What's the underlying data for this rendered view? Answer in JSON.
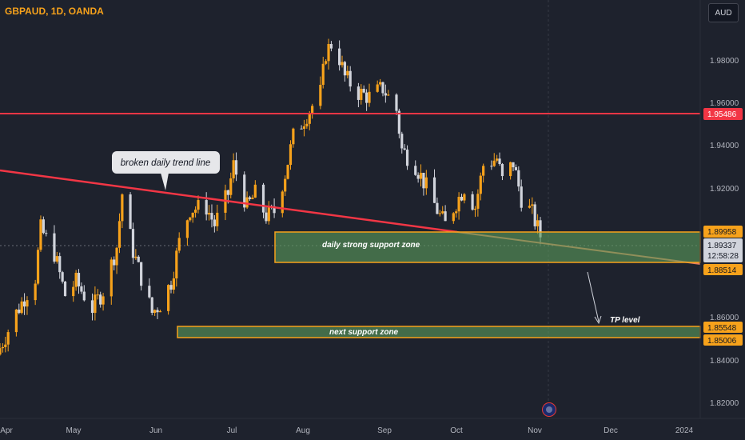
{
  "header": {
    "symbol_title": "GBPAUD, 1D, OANDA"
  },
  "currency_button": {
    "label": "AUD"
  },
  "colors": {
    "background": "#1e222d",
    "up_candle": "#f7a21b",
    "down_candle": "#d1d4dc",
    "resistance_line": "#f23645",
    "trend_line": "#f23645",
    "support_zone_fill": "#5b9a5b",
    "support_zone_border": "#f7a21b",
    "price_label_red": "#f23645",
    "price_label_orange": "#f7a21b",
    "price_label_current": "#d1d4dc",
    "axis_text": "#b2b5be"
  },
  "annotations": {
    "callout": "broken daily trend line",
    "zone1_label": "daily strong support zone",
    "zone2_label": "next support zone",
    "tp_label": "TP level"
  },
  "chart_data": {
    "type": "candlestick",
    "title": "GBPAUD, 1D, OANDA",
    "ylim": [
      1.81,
      2.0
    ],
    "yticks": [
      "1.98000",
      "1.96000",
      "1.94000",
      "1.92000",
      "1.86000",
      "1.84000",
      "1.82000"
    ],
    "xticks": [
      "Apr",
      "May",
      "Jun",
      "Jul",
      "Aug",
      "Sep",
      "Oct",
      "Nov",
      "Dec",
      "2024"
    ],
    "price_labels": {
      "resistance": "1.95486",
      "zone1_top": "1.89958",
      "current_price": "1.89337",
      "countdown": "12:58:28",
      "zone1_bottom": "1.88514",
      "zone2_top": "1.85548",
      "zone2_bottom": "1.85006"
    },
    "levels": {
      "resistance": 1.95486,
      "zone1_top": 1.89958,
      "zone1_bottom": 1.88514,
      "zone2_top": 1.85548,
      "zone2_bottom": 1.85006,
      "current": 1.89337
    },
    "series_close_path": [
      [
        "2023-04-18",
        1.842
      ],
      [
        "2023-04-24",
        1.858
      ],
      [
        "2023-05-01",
        1.874
      ],
      [
        "2023-05-03",
        1.896
      ],
      [
        "2023-05-08",
        1.885
      ],
      [
        "2023-05-12",
        1.866
      ],
      [
        "2023-05-16",
        1.872
      ],
      [
        "2023-05-22",
        1.86
      ],
      [
        "2023-05-26",
        1.868
      ],
      [
        "2023-05-31",
        1.888
      ],
      [
        "2023-06-02",
        1.912
      ],
      [
        "2023-06-06",
        1.886
      ],
      [
        "2023-06-09",
        1.874
      ],
      [
        "2023-06-13",
        1.858
      ],
      [
        "2023-06-16",
        1.862
      ],
      [
        "2023-06-20",
        1.872
      ],
      [
        "2023-06-23",
        1.89
      ],
      [
        "2023-06-27",
        1.905
      ],
      [
        "2023-07-03",
        1.906
      ],
      [
        "2023-07-06",
        1.898
      ],
      [
        "2023-07-11",
        1.912
      ],
      [
        "2023-07-13",
        1.925
      ],
      [
        "2023-07-18",
        1.906
      ],
      [
        "2023-07-21",
        1.912
      ],
      [
        "2023-07-25",
        1.902
      ],
      [
        "2023-07-28",
        1.904
      ],
      [
        "2023-08-01",
        1.921
      ],
      [
        "2023-08-04",
        1.938
      ],
      [
        "2023-08-09",
        1.948
      ],
      [
        "2023-08-14",
        1.958
      ],
      [
        "2023-08-16",
        1.976
      ],
      [
        "2023-08-19",
        1.982
      ],
      [
        "2023-08-23",
        1.965
      ],
      [
        "2023-08-28",
        1.958
      ],
      [
        "2023-09-01",
        1.956
      ],
      [
        "2023-09-06",
        1.96
      ],
      [
        "2023-09-11",
        1.95
      ],
      [
        "2023-09-13",
        1.932
      ],
      [
        "2023-09-18",
        1.925
      ],
      [
        "2023-09-22",
        1.915
      ],
      [
        "2023-09-27",
        1.902
      ],
      [
        "2023-09-29",
        1.898
      ],
      [
        "2023-10-03",
        1.908
      ],
      [
        "2023-10-06",
        1.915
      ],
      [
        "2023-10-10",
        1.906
      ],
      [
        "2023-10-13",
        1.925
      ],
      [
        "2023-10-18",
        1.928
      ],
      [
        "2023-10-20",
        1.918
      ],
      [
        "2023-10-24",
        1.926
      ],
      [
        "2023-10-27",
        1.91
      ],
      [
        "2023-10-31",
        1.903
      ],
      [
        "2023-11-03",
        1.893
      ]
    ]
  }
}
